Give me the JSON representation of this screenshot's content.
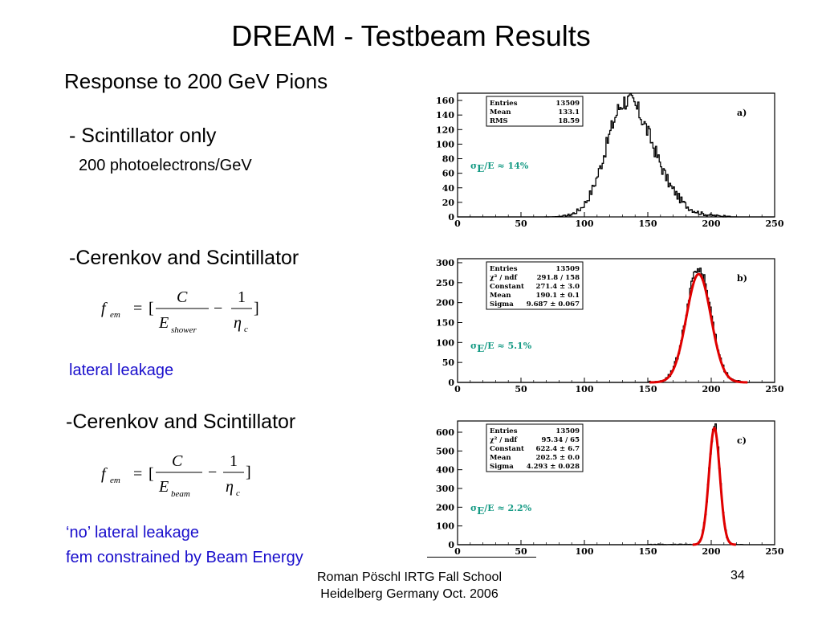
{
  "title": "DREAM - Testbeam Results",
  "subtitle": "Response to 200 GeV Pions",
  "left": {
    "scint_only": "- Scintillator only",
    "photoelectrons": "200 photoelectrons/GeV",
    "cer_scint_1": "-Cerenkov and Scintillator",
    "lateral_leakage": "lateral leakage",
    "cer_scint_2": "-Cerenkov and Scintillator",
    "no_leakage": "‘no’ lateral leakage",
    "fem_constraint": "fem constrained by Beam Energy"
  },
  "formula1": {
    "lhs": "f",
    "lhs_sub": "em",
    "eq": "=",
    "open": "[",
    "num1": "C",
    "den1": "E",
    "den1_sub": "shower",
    "minus": "−",
    "num2": "1",
    "den2": "η",
    "den2_sub": "c",
    "close": "]"
  },
  "formula2": {
    "lhs": "f",
    "lhs_sub": "em",
    "eq": "=",
    "open": "[",
    "num1": "C",
    "den1": "E",
    "den1_sub": "beam",
    "minus": "−",
    "num2": "1",
    "den2": "η",
    "den2_sub": "c",
    "close": "]"
  },
  "footer": {
    "line1": "Roman Pöschl IRTG Fall School",
    "line2": "Heidelberg Germany Oct. 2006",
    "page": "34"
  },
  "colors": {
    "fit": "#e00000",
    "sigma_text": "#159a84",
    "leakage_text": "#1a0fcc"
  },
  "chart_data": [
    {
      "type": "histogram",
      "panel_label": "a)",
      "xlim": [
        0,
        250
      ],
      "ylim": [
        0,
        170
      ],
      "x_ticks": [
        0,
        50,
        100,
        150,
        200,
        250
      ],
      "y_ticks": [
        0,
        20,
        40,
        60,
        80,
        100,
        120,
        140,
        160
      ],
      "stats": [
        [
          "Entries",
          "13509"
        ],
        [
          "Mean",
          "133.1"
        ],
        [
          "RMS",
          "18.59"
        ]
      ],
      "annotation": "σ_E/E ≈ 14%",
      "distribution": {
        "mean": 133.1,
        "rms": 18.59,
        "peak": 160,
        "asymmetry": "right tail"
      },
      "fit": null
    },
    {
      "type": "histogram",
      "panel_label": "b)",
      "xlim": [
        0,
        250
      ],
      "ylim": [
        0,
        310
      ],
      "x_ticks": [
        0,
        50,
        100,
        150,
        200,
        250
      ],
      "y_ticks": [
        0,
        50,
        100,
        150,
        200,
        250,
        300
      ],
      "stats": [
        [
          "Entries",
          "13509"
        ],
        [
          "χ² / ndf",
          "291.8 / 158"
        ],
        [
          "Constant",
          "271.4 ± 3.0"
        ],
        [
          "Mean",
          "190.1 ± 0.1"
        ],
        [
          "Sigma",
          "9.687 ± 0.067"
        ]
      ],
      "annotation": "σ_E/E ≈ 5.1%",
      "distribution": {
        "mean": 190.1,
        "sigma": 9.687,
        "peak": 285
      },
      "fit": {
        "function": "gaussian",
        "constant": 271.4,
        "mean": 190.1,
        "sigma": 9.687
      }
    },
    {
      "type": "histogram",
      "panel_label": "c)",
      "xlim": [
        0,
        250
      ],
      "ylim": [
        0,
        660
      ],
      "x_ticks": [
        0,
        50,
        100,
        150,
        200,
        250
      ],
      "y_ticks": [
        0,
        100,
        200,
        300,
        400,
        500,
        600
      ],
      "stats": [
        [
          "Entries",
          "13509"
        ],
        [
          "χ² / ndf",
          "95.34 / 65"
        ],
        [
          "Constant",
          "622.4 ± 6.7"
        ],
        [
          "Mean",
          "202.5 ± 0.0"
        ],
        [
          "Sigma",
          "4.293 ± 0.028"
        ]
      ],
      "annotation": "σ_E/E ≈ 2.2%",
      "distribution": {
        "mean": 202.5,
        "sigma": 4.293,
        "peak": 640
      },
      "fit": {
        "function": "gaussian",
        "constant": 622.4,
        "mean": 202.5,
        "sigma": 4.293
      }
    }
  ]
}
